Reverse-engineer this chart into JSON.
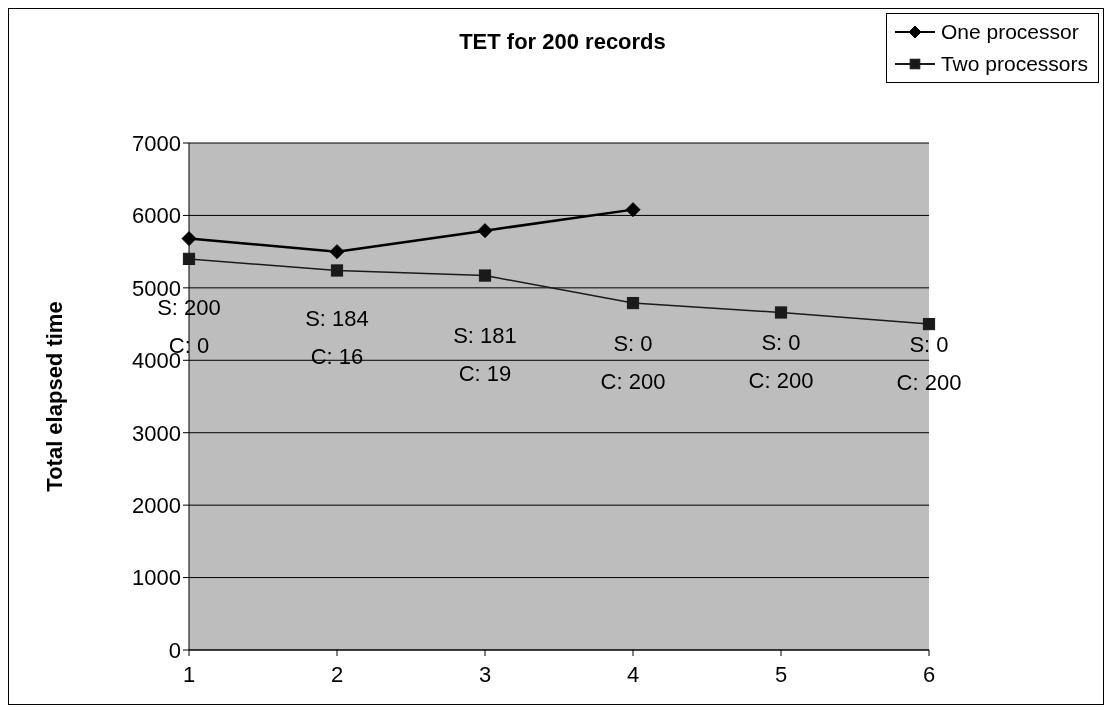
{
  "chart_data": {
    "type": "line",
    "title": "TET for 200 records",
    "ylabel": "Total elapsed time",
    "categories": [
      "1",
      "2",
      "3",
      "4",
      "5",
      "6"
    ],
    "series": [
      {
        "name": "One processor",
        "color": "#000000",
        "marker": "diamond",
        "values": [
          5680,
          5500,
          5790,
          6080,
          null,
          null
        ]
      },
      {
        "name": "Two processors",
        "color": "#1a1a1a",
        "marker": "square",
        "values": [
          5400,
          5240,
          5170,
          4790,
          4660,
          4500
        ]
      }
    ],
    "ylim": [
      0,
      7000
    ],
    "yticks": [
      0,
      1000,
      2000,
      3000,
      4000,
      5000,
      6000,
      7000
    ],
    "grid": "y",
    "legend": "top right",
    "annotations": [
      "S: 200",
      "C: 0",
      "S: 184",
      "C: 16",
      "S: 181",
      "C: 19",
      "S: 0",
      "C: 200",
      "S: 0",
      "C: 200",
      "S: 0",
      "C: 200"
    ]
  }
}
